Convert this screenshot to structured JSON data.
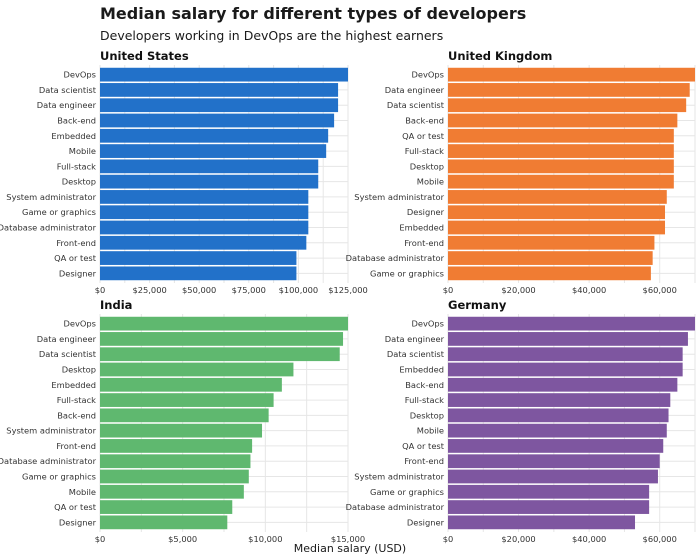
{
  "title": "Median salary for different types of developers",
  "subtitle": "Developers working in DevOps are the highest earners",
  "xlabel": "Median salary (USD)",
  "chart_data": [
    {
      "type": "bar",
      "orientation": "horizontal",
      "title": "United States",
      "color": "#2271c9",
      "xlim": [
        0,
        125000
      ],
      "ticks": [
        0,
        25000,
        50000,
        75000,
        100000,
        125000
      ],
      "tick_labels": [
        "$0",
        "$25,000",
        "$50,000",
        "$75,000",
        "$100,000",
        "$125,000"
      ],
      "categories": [
        "DevOps",
        "Data scientist",
        "Data engineer",
        "Back-end",
        "Embedded",
        "Mobile",
        "Full-stack",
        "Desktop",
        "System administrator",
        "Game or graphics",
        "Database administrator",
        "Front-end",
        "QA or test",
        "Designer"
      ],
      "values": [
        125000,
        120000,
        120000,
        118000,
        115000,
        114000,
        110000,
        110000,
        105000,
        105000,
        105000,
        104000,
        99000,
        99000
      ]
    },
    {
      "type": "bar",
      "orientation": "horizontal",
      "title": "United Kingdom",
      "color": "#f07c33",
      "xlim": [
        0,
        70000
      ],
      "ticks": [
        0,
        20000,
        40000,
        60000
      ],
      "tick_labels": [
        "$0",
        "$20,000",
        "$40,000",
        "$60,000"
      ],
      "categories": [
        "DevOps",
        "Data engineer",
        "Data scientist",
        "Back-end",
        "QA or test",
        "Full-stack",
        "Desktop",
        "Mobile",
        "System administrator",
        "Designer",
        "Embedded",
        "Front-end",
        "Database administrator",
        "Game or graphics"
      ],
      "values": [
        70000,
        68500,
        67500,
        65000,
        64000,
        64000,
        64000,
        64000,
        62000,
        61500,
        61500,
        58500,
        58000,
        57500
      ]
    },
    {
      "type": "bar",
      "orientation": "horizontal",
      "title": "India",
      "color": "#5fb86f",
      "xlim": [
        0,
        15000
      ],
      "ticks": [
        0,
        5000,
        10000,
        15000
      ],
      "tick_labels": [
        "$0",
        "$5,000",
        "$10,000",
        "$15,000"
      ],
      "categories": [
        "DevOps",
        "Data engineer",
        "Data scientist",
        "Desktop",
        "Embedded",
        "Full-stack",
        "Back-end",
        "System administrator",
        "Front-end",
        "Database administrator",
        "Game or graphics",
        "Mobile",
        "QA or test",
        "Designer"
      ],
      "values": [
        15000,
        14700,
        14500,
        11700,
        11000,
        10500,
        10200,
        9800,
        9200,
        9100,
        9000,
        8700,
        8000,
        7700
      ]
    },
    {
      "type": "bar",
      "orientation": "horizontal",
      "title": "Germany",
      "color": "#7e56a0",
      "xlim": [
        0,
        70000
      ],
      "ticks": [
        0,
        20000,
        40000,
        60000
      ],
      "tick_labels": [
        "$0",
        "$20,000",
        "$40,000",
        "$60,000"
      ],
      "categories": [
        "DevOps",
        "Data engineer",
        "Data scientist",
        "Embedded",
        "Back-end",
        "Full-stack",
        "Desktop",
        "Mobile",
        "QA or test",
        "Front-end",
        "System administrator",
        "Game or graphics",
        "Database administrator",
        "Designer"
      ],
      "values": [
        70000,
        68000,
        66500,
        66500,
        65000,
        63000,
        62500,
        62000,
        61000,
        60000,
        59500,
        57000,
        57000,
        53000
      ]
    }
  ]
}
